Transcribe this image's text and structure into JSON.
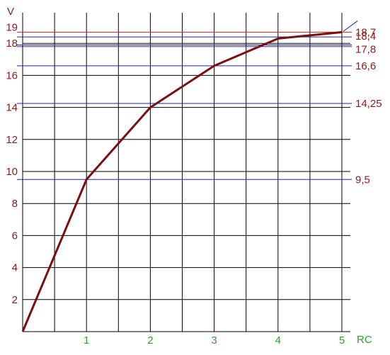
{
  "chart_data": {
    "type": "line",
    "xlabel": "RC",
    "ylabel": "V",
    "xlim": [
      0,
      5.3
    ],
    "ylim": [
      0,
      20
    ],
    "x_ticks": [
      1,
      2,
      3,
      4,
      5
    ],
    "x_tick_labels": [
      "1",
      "2",
      "3",
      "4",
      "5"
    ],
    "y_ticks": [
      2,
      4,
      6,
      8,
      10,
      12,
      14,
      16,
      18,
      19
    ],
    "y_tick_labels": [
      "2",
      "4",
      "6",
      "8",
      "10",
      "12",
      "14",
      "16",
      "18",
      "19"
    ],
    "grid": true,
    "grid_x_step": 0.5,
    "grid_y_step": 2,
    "series": [
      {
        "color": "#7b0f0f",
        "x": [
          0,
          1,
          2,
          3,
          4,
          5
        ],
        "y": [
          0,
          9.5,
          14.0,
          16.6,
          18.3,
          18.7
        ]
      }
    ],
    "reference_lines": [
      {
        "value": 18.7,
        "label": "18,7",
        "color": "#cc2222"
      },
      {
        "value": 18.4,
        "label": "18,4",
        "color": "#2222aa"
      },
      {
        "value": 17.9,
        "label": "",
        "color": "#2222aa"
      },
      {
        "value": 17.8,
        "label": "17,8",
        "color": "#2222aa"
      },
      {
        "value": 16.6,
        "label": "16,6",
        "color": "#2222aa"
      },
      {
        "value": 14.25,
        "label": "14,25",
        "color": "#2222aa"
      },
      {
        "value": 9.5,
        "label": "9,5",
        "color": "#2222aa"
      }
    ],
    "colors": {
      "grid": "#000000",
      "y_text": "#8b1a1a",
      "x_text": "#2ca02c"
    }
  }
}
